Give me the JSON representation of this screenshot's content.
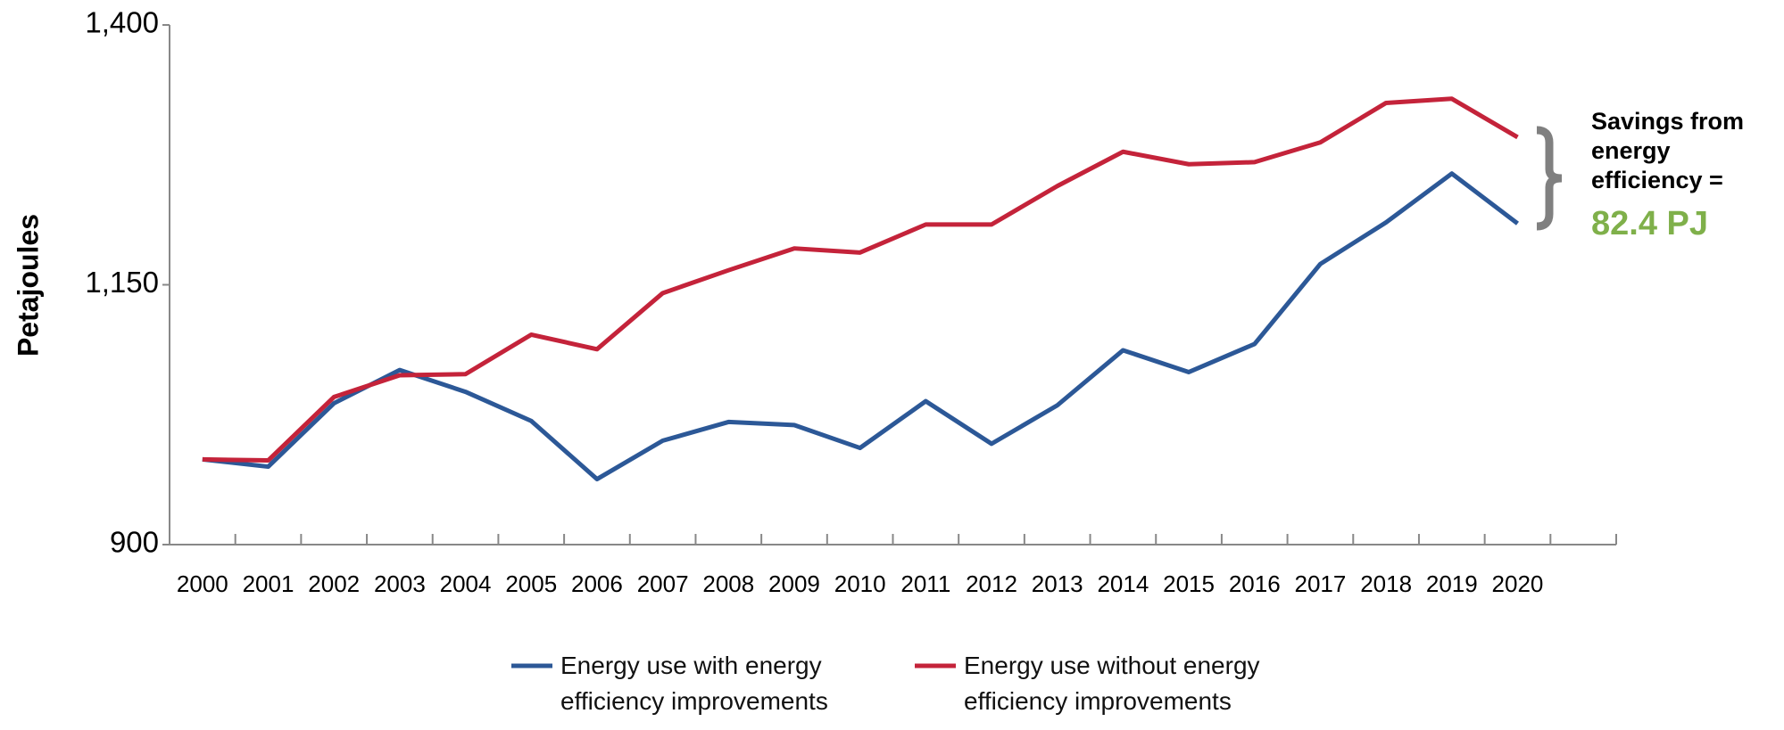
{
  "chart_data": {
    "type": "line",
    "y_label": "Petajoules",
    "categories": [
      "2000",
      "2001",
      "2002",
      "2003",
      "2004",
      "2005",
      "2006",
      "2007",
      "2008",
      "2009",
      "2010",
      "2011",
      "2012",
      "2013",
      "2014",
      "2015",
      "2016",
      "2017",
      "2018",
      "2019",
      "2020"
    ],
    "series": [
      {
        "name": "Energy use with energy efficiency improvements",
        "color": "#2c5897",
        "values": [
          982,
          975,
          1036,
          1068,
          1047,
          1019,
          963,
          1000,
          1018,
          1015,
          993,
          1038,
          997,
          1034,
          1087,
          1066,
          1093,
          1170,
          1210,
          1257,
          1209
        ]
      },
      {
        "name": "Energy use without energy efficiency improvements",
        "color": "#c4233a",
        "values": [
          982,
          981,
          1042,
          1063,
          1064,
          1102,
          1088,
          1142,
          1164,
          1185,
          1181,
          1208,
          1208,
          1245,
          1278,
          1266,
          1268,
          1287,
          1325,
          1329,
          1292
        ]
      }
    ],
    "ylim": [
      900,
      1400
    ],
    "yticks": [
      900,
      {
        "value": 1150,
        "label": "1,150"
      },
      {
        "value": 1400,
        "label": "1,400"
      }
    ],
    "annotation": {
      "text": "Savings from energy efficiency =",
      "value_text": "82.4 PJ",
      "value_color": "#7fb04a"
    }
  }
}
